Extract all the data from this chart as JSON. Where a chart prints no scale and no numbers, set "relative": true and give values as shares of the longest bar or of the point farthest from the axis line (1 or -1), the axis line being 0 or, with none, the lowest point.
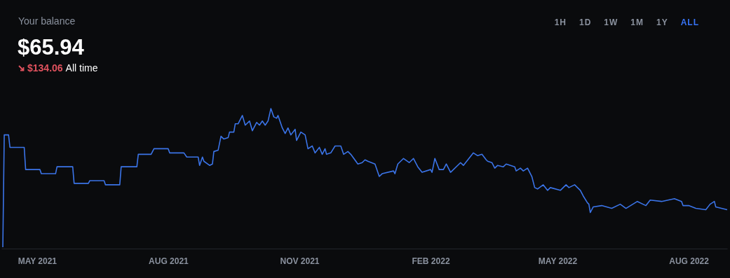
{
  "chart_data": {
    "type": "line",
    "title": "$65.94",
    "subtitle": "Your balance",
    "annotations": [
      "$134.06",
      "All time",
      "1H",
      "1D",
      "1W",
      "1M",
      "1Y",
      "ALL"
    ],
    "relative": true,
    "grid": false,
    "legend": false,
    "marker": "none",
    "line_style": "solid",
    "tick_labels": "x",
    "xlim": [
      "2021-04-06",
      "2022-08-28"
    ],
    "xticks": [
      {
        "value": "2021-05-01",
        "label": "MAY 2021"
      },
      {
        "value": "2021-08-01",
        "label": "AUG 2021"
      },
      {
        "value": "2021-11-01",
        "label": "NOV 2021"
      },
      {
        "value": "2022-02-01",
        "label": "FEB 2022"
      },
      {
        "value": "2022-05-01",
        "label": "MAY 2022"
      },
      {
        "value": "2022-08-01",
        "label": "AUG 2022"
      }
    ],
    "x": [
      "2021-04-07",
      "2021-04-08",
      "2021-04-11",
      "2021-04-12",
      "2021-04-22",
      "2021-04-23",
      "2021-05-03",
      "2021-05-04",
      "2021-05-14",
      "2021-05-15",
      "2021-05-26",
      "2021-05-27",
      "2021-06-06",
      "2021-06-07",
      "2021-06-17",
      "2021-06-18",
      "2021-06-28",
      "2021-06-29",
      "2021-07-10",
      "2021-07-11",
      "2021-07-20",
      "2021-07-22",
      "2021-08-01",
      "2021-08-02",
      "2021-08-12",
      "2021-08-14",
      "2021-08-22",
      "2021-08-23",
      "2021-08-25",
      "2021-08-26",
      "2021-08-30",
      "2021-09-01",
      "2021-09-02",
      "2021-09-05",
      "2021-09-07",
      "2021-09-09",
      "2021-09-12",
      "2021-09-13",
      "2021-09-16",
      "2021-09-17",
      "2021-09-19",
      "2021-09-22",
      "2021-09-24",
      "2021-09-27",
      "2021-09-29",
      "2021-10-02",
      "2021-10-04",
      "2021-10-06",
      "2021-10-08",
      "2021-10-10",
      "2021-10-12",
      "2021-10-14",
      "2021-10-16",
      "2021-10-17",
      "2021-10-20",
      "2021-10-22",
      "2021-10-24",
      "2021-10-26",
      "2021-10-29",
      "2021-10-30",
      "2021-11-02",
      "2021-11-05",
      "2021-11-07",
      "2021-11-10",
      "2021-11-12",
      "2021-11-15",
      "2021-11-17",
      "2021-11-19",
      "2021-11-20",
      "2021-11-23",
      "2021-11-26",
      "2021-11-30",
      "2021-12-02",
      "2021-12-05",
      "2021-12-07",
      "2021-12-12",
      "2021-12-15",
      "2021-12-17",
      "2021-12-19",
      "2021-12-24",
      "2021-12-27",
      "2021-12-29",
      "2022-01-06",
      "2022-01-07",
      "2022-01-09",
      "2022-01-13",
      "2022-01-17",
      "2022-01-20",
      "2022-01-23",
      "2022-01-26",
      "2022-02-01",
      "2022-02-02",
      "2022-02-04",
      "2022-02-07",
      "2022-02-10",
      "2022-02-12",
      "2022-02-15",
      "2022-02-22",
      "2022-02-24",
      "2022-03-03",
      "2022-03-06",
      "2022-03-09",
      "2022-03-12",
      "2022-03-13",
      "2022-03-16",
      "2022-03-18",
      "2022-03-20",
      "2022-03-24",
      "2022-03-26",
      "2022-04-01",
      "2022-04-02",
      "2022-04-05",
      "2022-04-07",
      "2022-04-10",
      "2022-04-13",
      "2022-04-15",
      "2022-04-17",
      "2022-04-21",
      "2022-04-24",
      "2022-04-26",
      "2022-05-03",
      "2022-05-07",
      "2022-05-09",
      "2022-05-13",
      "2022-05-17",
      "2022-05-19",
      "2022-05-22",
      "2022-05-23",
      "2022-05-24",
      "2022-05-26",
      "2022-06-01",
      "2022-06-08",
      "2022-06-14",
      "2022-06-18",
      "2022-06-26",
      "2022-07-02",
      "2022-07-05",
      "2022-07-13",
      "2022-07-22",
      "2022-07-27",
      "2022-07-28",
      "2022-08-01",
      "2022-08-06",
      "2022-08-13",
      "2022-08-16",
      "2022-08-19",
      "2022-08-20",
      "2022-08-28"
    ],
    "series": [
      {
        "color": "#3b74e8",
        "values": [
          0,
          0.81,
          0.81,
          0.72,
          0.72,
          0.56,
          0.56,
          0.53,
          0.53,
          0.58,
          0.58,
          0.46,
          0.46,
          0.48,
          0.48,
          0.45,
          0.45,
          0.58,
          0.58,
          0.67,
          0.67,
          0.71,
          0.71,
          0.68,
          0.68,
          0.65,
          0.65,
          0.59,
          0.65,
          0.62,
          0.59,
          0.6,
          0.69,
          0.7,
          0.8,
          0.78,
          0.79,
          0.83,
          0.83,
          0.89,
          0.89,
          0.95,
          0.88,
          0.91,
          0.84,
          0.9,
          0.88,
          0.91,
          0.88,
          0.91,
          1,
          0.94,
          0.93,
          0.95,
          0.86,
          0.82,
          0.86,
          0.81,
          0.85,
          0.77,
          0.83,
          0.81,
          0.71,
          0.73,
          0.68,
          0.72,
          0.67,
          0.71,
          0.67,
          0.68,
          0.73,
          0.73,
          0.67,
          0.69,
          0.67,
          0.6,
          0.61,
          0.63,
          0.62,
          0.6,
          0.51,
          0.53,
          0.55,
          0.53,
          0.6,
          0.64,
          0.61,
          0.64,
          0.58,
          0.54,
          0.56,
          0.54,
          0.64,
          0.56,
          0.56,
          0.6,
          0.54,
          0.61,
          0.59,
          0.68,
          0.66,
          0.67,
          0.63,
          0.62,
          0.61,
          0.57,
          0.59,
          0.58,
          0.6,
          0.58,
          0.55,
          0.57,
          0.55,
          0.57,
          0.51,
          0.43,
          0.42,
          0.45,
          0.41,
          0.43,
          0.41,
          0.45,
          0.43,
          0.45,
          0.41,
          0.37,
          0.32,
          0.31,
          0.25,
          0.29,
          0.3,
          0.28,
          0.31,
          0.28,
          0.33,
          0.3,
          0.34,
          0.33,
          0.35,
          0.33,
          0.3,
          0.3,
          0.28,
          0.27,
          0.31,
          0.33,
          0.29,
          0.27
        ]
      }
    ]
  }
}
